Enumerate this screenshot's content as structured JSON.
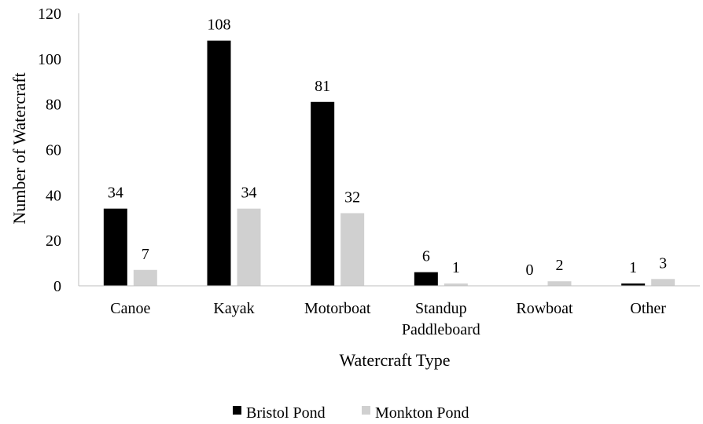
{
  "chart_data": {
    "type": "bar",
    "xlabel": "Watercraft Type",
    "ylabel": "Number of Watercraft",
    "ylim": [
      0,
      120
    ],
    "yticks": [
      "0",
      "20",
      "40",
      "60",
      "80",
      "100",
      "120"
    ],
    "categories": [
      [
        "Canoe"
      ],
      [
        "Kayak"
      ],
      [
        "Motorboat"
      ],
      [
        "Standup",
        "Paddleboard"
      ],
      [
        "Rowboat"
      ],
      [
        "Other"
      ]
    ],
    "series": [
      {
        "name": "Bristol Pond",
        "color": "#000000",
        "values": [
          34,
          108,
          81,
          6,
          0,
          1
        ]
      },
      {
        "name": "Monkton Pond",
        "color": "#d0d0d0",
        "values": [
          7,
          34,
          32,
          1,
          2,
          3
        ]
      }
    ],
    "data_labels": true,
    "grid": false,
    "legend": "bottom"
  }
}
